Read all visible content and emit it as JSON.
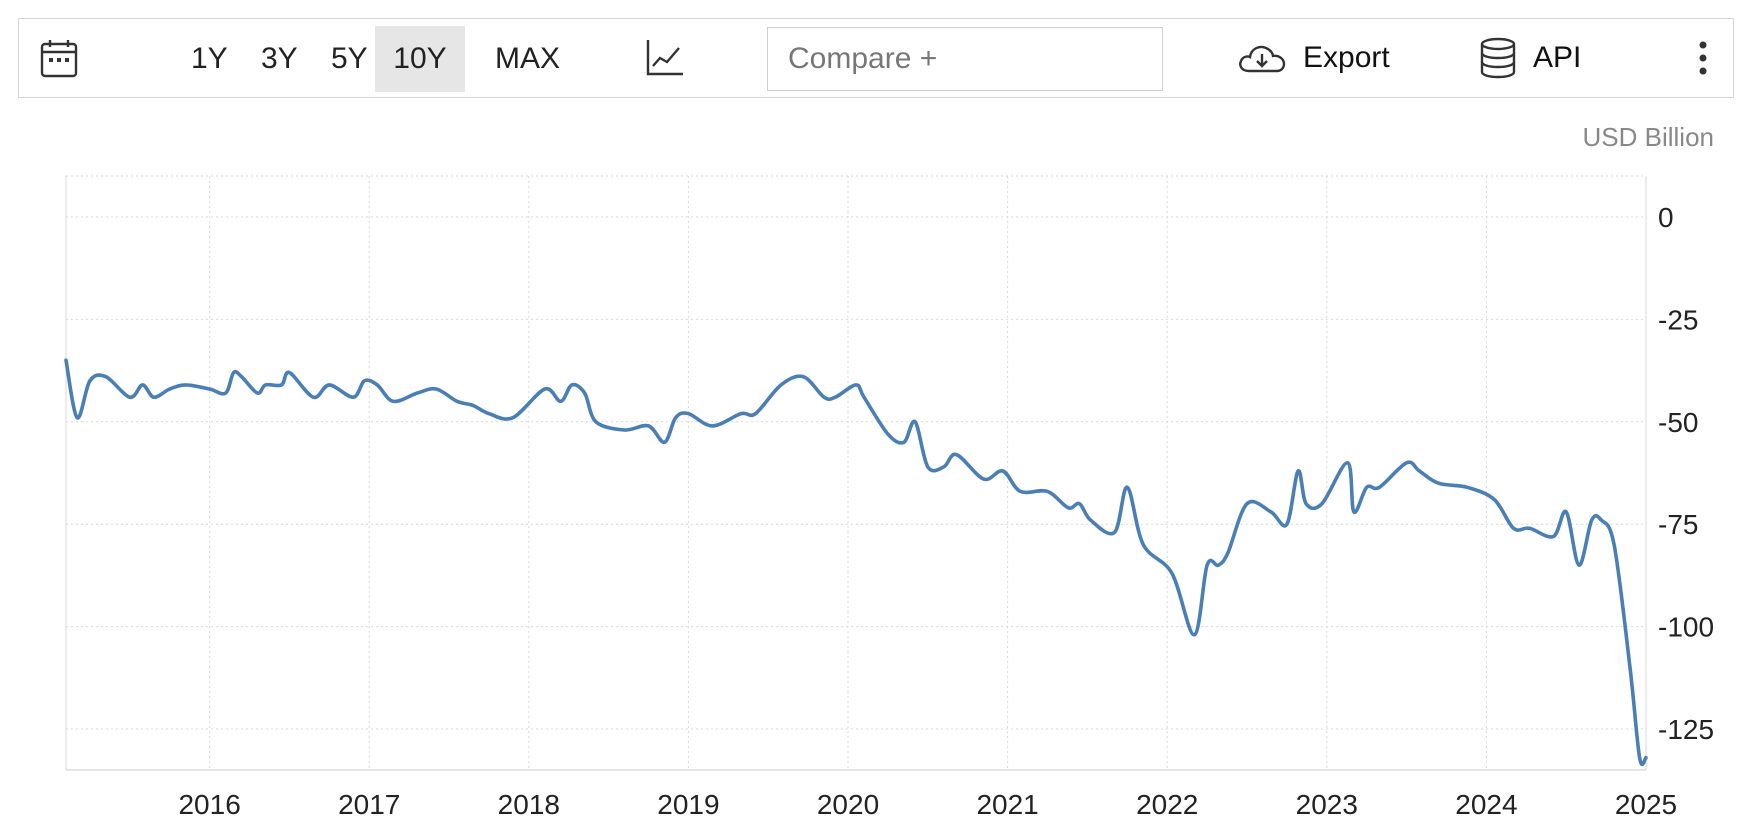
{
  "toolbar": {
    "ranges": [
      "1Y",
      "3Y",
      "5Y",
      "10Y",
      "MAX"
    ],
    "active_range": "10Y",
    "compare_placeholder": "Compare +",
    "export_label": "Export",
    "api_label": "API",
    "icons": {
      "calendar": "calendar-icon",
      "chart_type": "line-chart-icon",
      "export": "cloud-download-icon",
      "api": "database-icon",
      "more": "more-vertical-icon"
    }
  },
  "chart_data": {
    "type": "line",
    "unit_label": "USD Billion",
    "x_ticks": [
      "2016",
      "2017",
      "2018",
      "2019",
      "2020",
      "2021",
      "2022",
      "2023",
      "2024",
      "2025"
    ],
    "y_ticks": [
      0,
      -25,
      -50,
      -75,
      -100,
      -125
    ],
    "ylim": [
      -135,
      10
    ],
    "xlim": [
      2015.1,
      2025.0
    ],
    "grid": true,
    "line_color": "#4a7fb5",
    "series": [
      {
        "x": [
          2015.1,
          2015.17,
          2015.25,
          2015.35,
          2015.5,
          2015.58,
          2015.65,
          2015.75,
          2015.85,
          2016.0,
          2016.1,
          2016.15,
          2016.2,
          2016.3,
          2016.35,
          2016.45,
          2016.5,
          2016.65,
          2016.75,
          2016.9,
          2016.97,
          2017.05,
          2017.15,
          2017.3,
          2017.42,
          2017.55,
          2017.65,
          2017.75,
          2017.9,
          2018.1,
          2018.2,
          2018.27,
          2018.35,
          2018.42,
          2018.6,
          2018.75,
          2018.85,
          2018.92,
          2019.0,
          2019.15,
          2019.33,
          2019.42,
          2019.58,
          2019.72,
          2019.85,
          2019.92,
          2020.05,
          2020.1,
          2020.25,
          2020.35,
          2020.42,
          2020.5,
          2020.6,
          2020.68,
          2020.85,
          2020.97,
          2021.08,
          2021.25,
          2021.38,
          2021.45,
          2021.52,
          2021.67,
          2021.75,
          2021.85,
          2022.03,
          2022.17,
          2022.25,
          2022.32,
          2022.38,
          2022.5,
          2022.65,
          2022.75,
          2022.82,
          2022.87,
          2022.97,
          2023.13,
          2023.17,
          2023.25,
          2023.33,
          2023.5,
          2023.58,
          2023.7,
          2023.88,
          2024.05,
          2024.17,
          2024.27,
          2024.42,
          2024.5,
          2024.58,
          2024.66,
          2024.72,
          2024.8,
          2024.9,
          2024.96,
          2025.0
        ],
        "y": [
          -35,
          -49,
          -40,
          -39,
          -44,
          -41,
          -44,
          -42,
          -41,
          -42,
          -43,
          -38,
          -39,
          -43,
          -41,
          -41,
          -38,
          -44,
          -41,
          -44,
          -40,
          -41,
          -45,
          -43,
          -42,
          -45,
          -46,
          -48,
          -49,
          -42,
          -45,
          -41,
          -43,
          -50,
          -52,
          -51,
          -55,
          -49,
          -48,
          -51,
          -48,
          -48,
          -41,
          -39,
          -44,
          -44,
          -41,
          -44,
          -53,
          -55,
          -50,
          -61,
          -61,
          -58,
          -64,
          -62,
          -67,
          -67,
          -71,
          -70,
          -74,
          -77,
          -66,
          -80,
          -87,
          -102,
          -85,
          -85,
          -82,
          -70,
          -72,
          -75,
          -62,
          -70,
          -70,
          -60,
          -72,
          -66,
          -66,
          -60,
          -62,
          -65,
          -66,
          -69,
          -76,
          -76,
          -78,
          -72,
          -85,
          -74,
          -74,
          -80,
          -110,
          -132,
          -132
        ]
      }
    ]
  }
}
